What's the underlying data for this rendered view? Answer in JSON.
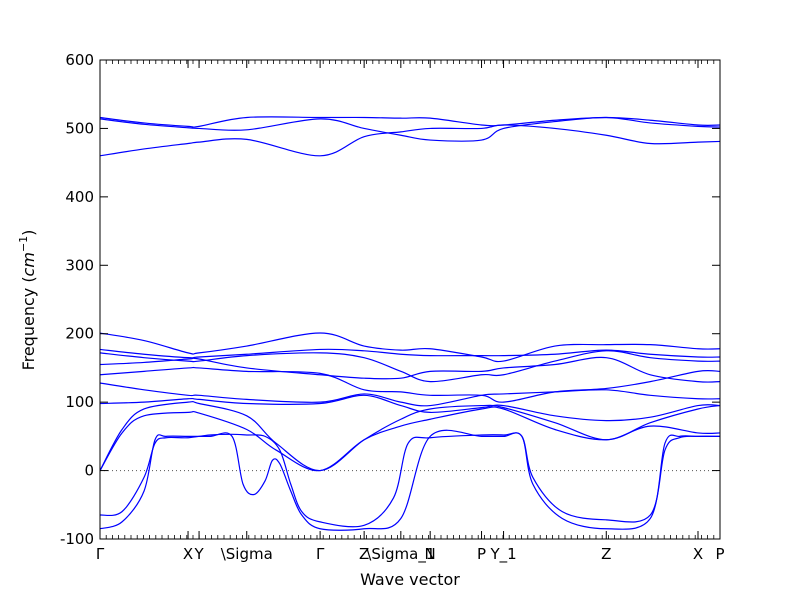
{
  "chart_data": {
    "type": "line",
    "title": "",
    "xlabel": "Wave vector",
    "ylabel": "Frequency (cm^-1)",
    "ylabel_parts": {
      "main": "Frequency (",
      "unit_base": "cm",
      "unit_exp": "−1",
      "close": ")"
    },
    "ylim": [
      -100,
      600
    ],
    "yticks": [
      -100,
      0,
      100,
      200,
      300,
      400,
      500,
      600
    ],
    "grid": false,
    "zero_line": {
      "value": 0,
      "style": "dotted"
    },
    "line_color": "#0000ff",
    "xticks": [
      {
        "label": "Γ",
        "x": 0.0
      },
      {
        "label": "X",
        "x": 1.2
      },
      {
        "label": "Y",
        "x": 1.35
      },
      {
        "label": "\\Sigma",
        "x": 2.0
      },
      {
        "label": "Γ",
        "x": 3.0
      },
      {
        "label": "Z",
        "x": 3.6
      },
      {
        "label": "\\Sigma_1",
        "x": 4.1
      },
      {
        "label": "N",
        "x": 4.5
      },
      {
        "label": "P",
        "x": 5.2
      },
      {
        "label": "Y_1",
        "x": 5.5
      },
      {
        "label": "Z",
        "x": 6.9
      },
      {
        "label": "X",
        "x": 8.15
      },
      {
        "label": "P",
        "x": 8.45
      }
    ],
    "xlim": [
      0.0,
      8.45
    ],
    "series": [
      {
        "x": [
          0,
          0.6,
          1.2,
          1.35,
          2.0,
          3.0,
          3.6,
          4.1,
          4.5,
          5.2,
          5.5,
          6.2,
          6.9,
          7.5,
          8.15,
          8.45
        ],
        "y": [
          516,
          508,
          503,
          503,
          516,
          516,
          516,
          515,
          515,
          505,
          505,
          512,
          516,
          512,
          505,
          505
        ]
      },
      {
        "x": [
          0,
          0.6,
          1.2,
          1.35,
          2.0,
          3.0,
          3.6,
          4.1,
          4.5,
          5.2,
          5.5,
          6.2,
          6.9,
          7.5,
          8.15,
          8.45
        ],
        "y": [
          514,
          506,
          501,
          500,
          498,
          514,
          500,
          490,
          483,
          483,
          500,
          510,
          516,
          508,
          503,
          502
        ]
      },
      {
        "x": [
          0,
          0.6,
          1.2,
          1.35,
          2.0,
          3.0,
          3.6,
          4.1,
          4.5,
          5.2,
          5.5,
          6.2,
          6.9,
          7.5,
          8.15,
          8.45
        ],
        "y": [
          460,
          470,
          478,
          480,
          484,
          460,
          488,
          495,
          500,
          500,
          505,
          500,
          490,
          478,
          480,
          481
        ]
      },
      {
        "x": [
          0,
          0.6,
          1.2,
          1.35,
          2.0,
          3.0,
          3.6,
          4.1,
          4.5,
          5.2,
          5.5,
          6.2,
          6.9,
          7.5,
          8.15,
          8.45
        ],
        "y": [
          201,
          190,
          172,
          172,
          182,
          201,
          182,
          176,
          178,
          166,
          160,
          182,
          184,
          184,
          178,
          178
        ]
      },
      {
        "x": [
          0,
          0.6,
          1.2,
          1.35,
          2.0,
          3.0,
          3.6,
          4.1,
          4.5,
          5.2,
          5.5,
          6.2,
          6.9,
          7.5,
          8.15,
          8.45
        ],
        "y": [
          177,
          170,
          165,
          166,
          170,
          177,
          175,
          170,
          168,
          168,
          168,
          170,
          176,
          170,
          166,
          166
        ]
      },
      {
        "x": [
          0,
          0.6,
          1.2,
          1.35,
          2.0,
          3.0,
          3.6,
          4.1,
          4.5,
          5.2,
          5.5,
          6.2,
          6.9,
          7.5,
          8.15,
          8.45
        ],
        "y": [
          172,
          165,
          160,
          160,
          168,
          172,
          165,
          145,
          130,
          140,
          140,
          160,
          175,
          165,
          160,
          160
        ]
      },
      {
        "x": [
          0,
          0.6,
          1.2,
          1.35,
          2.0,
          3.0,
          3.6,
          4.1,
          4.5,
          5.2,
          5.5,
          6.2,
          6.9,
          7.5,
          8.15,
          8.45
        ],
        "y": [
          155,
          158,
          163,
          163,
          150,
          140,
          135,
          135,
          145,
          145,
          150,
          155,
          165,
          140,
          130,
          130
        ]
      },
      {
        "x": [
          0,
          0.6,
          1.2,
          1.35,
          2.0,
          3.0,
          3.6,
          4.1,
          4.5,
          5.2,
          5.5,
          6.2,
          6.9,
          7.5,
          8.15,
          8.45
        ],
        "y": [
          140,
          145,
          150,
          150,
          145,
          142,
          118,
          115,
          110,
          110,
          100,
          115,
          120,
          130,
          145,
          145
        ]
      },
      {
        "x": [
          0,
          0.6,
          1.2,
          1.35,
          2.0,
          3.0,
          3.6,
          4.1,
          4.5,
          5.2,
          5.5,
          6.2,
          6.9,
          7.5,
          8.15,
          8.45
        ],
        "y": [
          128,
          118,
          110,
          110,
          104,
          100,
          112,
          100,
          95,
          110,
          112,
          115,
          118,
          110,
          105,
          105
        ]
      },
      {
        "x": [
          0,
          0.6,
          1.2,
          1.35,
          2.0,
          3.0,
          3.6,
          4.1,
          4.5,
          5.2,
          5.5,
          6.2,
          6.9,
          7.5,
          8.15,
          8.45
        ],
        "y": [
          98,
          100,
          105,
          104,
          98,
          98,
          110,
          95,
          85,
          92,
          95,
          80,
          73,
          78,
          95,
          95
        ]
      },
      {
        "x": [
          0,
          0.3,
          0.6,
          1.2,
          1.35,
          2.0,
          2.4,
          3.0,
          3.6,
          4.1,
          4.5,
          5.2,
          5.5,
          6.2,
          6.9,
          7.5,
          8.15,
          8.45
        ],
        "y": [
          0,
          60,
          90,
          100,
          98,
          80,
          40,
          0,
          45,
          75,
          90,
          95,
          92,
          70,
          45,
          70,
          90,
          95
        ]
      },
      {
        "x": [
          0,
          0.3,
          0.6,
          1.2,
          1.35,
          2.0,
          2.4,
          3.0,
          3.6,
          4.1,
          4.5,
          5.2,
          5.5,
          6.2,
          6.9,
          7.5,
          8.15,
          8.45
        ],
        "y": [
          0,
          55,
          80,
          85,
          84,
          60,
          30,
          0,
          45,
          65,
          75,
          90,
          90,
          60,
          45,
          65,
          55,
          55
        ]
      },
      {
        "x": [
          0,
          0.3,
          0.6,
          0.75,
          0.9,
          1.2,
          1.5,
          1.8,
          1.95,
          2.1,
          2.25,
          2.35,
          2.45,
          2.6,
          2.75,
          3.0,
          3.6,
          4.1,
          4.5,
          5.2,
          5.5,
          5.75,
          5.9,
          6.3,
          6.9,
          7.5,
          7.7,
          7.9,
          8.15,
          8.45
        ],
        "y": [
          -85,
          -75,
          -30,
          45,
          50,
          50,
          50,
          50,
          -20,
          -35,
          -15,
          15,
          10,
          -30,
          -65,
          -85,
          -85,
          -70,
          50,
          50,
          50,
          50,
          -20,
          -70,
          -85,
          -70,
          40,
          50,
          50,
          50
        ]
      },
      {
        "x": [
          0,
          0.3,
          0.6,
          0.75,
          0.9,
          1.2,
          1.5,
          1.8,
          2.0,
          2.25,
          2.45,
          2.6,
          2.75,
          3.0,
          3.6,
          4.0,
          4.2,
          4.5,
          5.2,
          5.5,
          5.75,
          5.9,
          6.3,
          6.9,
          7.5,
          7.7,
          7.9,
          8.15,
          8.45
        ],
        "y": [
          -65,
          -60,
          -10,
          40,
          48,
          48,
          52,
          53,
          52,
          50,
          30,
          -20,
          -60,
          -75,
          -80,
          -40,
          40,
          48,
          52,
          52,
          50,
          -10,
          -60,
          -72,
          -65,
          30,
          48,
          50,
          50
        ]
      }
    ]
  }
}
